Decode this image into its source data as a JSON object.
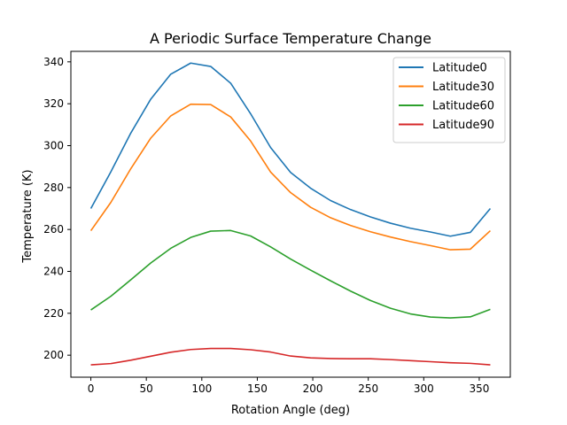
{
  "chart_data": {
    "type": "line",
    "title": "A Periodic Surface Temperature Change",
    "xlabel": "Rotation Angle (deg)",
    "ylabel": "Temperature (K)",
    "xlim": [
      -18,
      378
    ],
    "ylim": [
      189.5,
      345
    ],
    "xticks": [
      0,
      50,
      100,
      150,
      200,
      250,
      300,
      350
    ],
    "yticks": [
      200,
      220,
      240,
      260,
      280,
      300,
      320,
      340
    ],
    "grid": false,
    "legend_position": "top-right",
    "x": [
      0,
      18,
      36,
      54,
      72,
      90,
      108,
      126,
      144,
      162,
      180,
      198,
      216,
      234,
      252,
      270,
      288,
      306,
      324,
      342,
      360
    ],
    "series": [
      {
        "name": "Latitude0",
        "color": "#1f77b4",
        "values": [
          270,
          287.5,
          306,
          322.2,
          334.1,
          339.4,
          337.8,
          329.8,
          315.2,
          299.1,
          287.2,
          279.7,
          273.8,
          269.5,
          266,
          263,
          260.6,
          258.8,
          256.8,
          258.6,
          270
        ]
      },
      {
        "name": "Latitude30",
        "color": "#ff7f0e",
        "values": [
          259.4,
          272.9,
          289,
          303.6,
          314.2,
          319.8,
          319.6,
          313.7,
          302.2,
          287.4,
          277.6,
          270.6,
          265.6,
          261.9,
          258.9,
          256.4,
          254.2,
          252.3,
          250.3,
          250.6,
          259.4
        ]
      },
      {
        "name": "Latitude60",
        "color": "#2ca02c",
        "values": [
          221.6,
          228.1,
          236,
          244,
          251,
          256.2,
          259.2,
          259.5,
          256.9,
          251.7,
          245.9,
          240.6,
          235.5,
          230.6,
          226.1,
          222.4,
          219.7,
          218.2,
          217.8,
          218.3,
          221.9
        ]
      },
      {
        "name": "Latitude90",
        "color": "#d62728",
        "values": [
          195.4,
          196,
          197.6,
          199.5,
          201.4,
          202.7,
          203.2,
          203.2,
          202.6,
          201.5,
          199.6,
          198.7,
          198.4,
          198.3,
          198.3,
          197.9,
          197.4,
          196.9,
          196.4,
          196.1,
          195.4
        ]
      }
    ]
  }
}
